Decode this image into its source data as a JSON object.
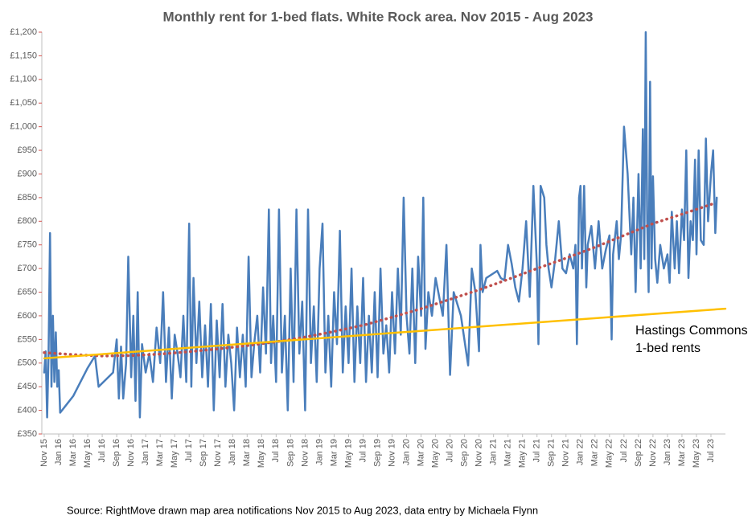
{
  "chart_data": {
    "type": "line",
    "title": "Monthly rent for 1-bed flats. White Rock area. Nov 2015 - Aug 2023",
    "source": "Source: RightMove drawn map area notifications Nov 2015 to Aug 2023, data entry by Michaela Flynn",
    "annotation": [
      "Hastings Commons",
      "1-bed rents"
    ],
    "xlim": [
      0,
      94
    ],
    "ylim": [
      350,
      1200
    ],
    "xticks": [
      {
        "value": 0,
        "label": "Nov 15"
      },
      {
        "value": 2,
        "label": "Jan 16"
      },
      {
        "value": 4,
        "label": "Mar 16"
      },
      {
        "value": 6,
        "label": "May 16"
      },
      {
        "value": 8,
        "label": "Jul 16"
      },
      {
        "value": 10,
        "label": "Sep 16"
      },
      {
        "value": 12,
        "label": "Nov 16"
      },
      {
        "value": 14,
        "label": "Jan 17"
      },
      {
        "value": 16,
        "label": "Mar 17"
      },
      {
        "value": 18,
        "label": "May 17"
      },
      {
        "value": 20,
        "label": "Jul 17"
      },
      {
        "value": 22,
        "label": "Sep 17"
      },
      {
        "value": 24,
        "label": "Nov 17"
      },
      {
        "value": 26,
        "label": "Jan 18"
      },
      {
        "value": 28,
        "label": "Mar 18"
      },
      {
        "value": 30,
        "label": "May 18"
      },
      {
        "value": 32,
        "label": "Jul 18"
      },
      {
        "value": 34,
        "label": "Sep 18"
      },
      {
        "value": 36,
        "label": "Nov 18"
      },
      {
        "value": 38,
        "label": "Jan 19"
      },
      {
        "value": 40,
        "label": "Mar 19"
      },
      {
        "value": 42,
        "label": "May 19"
      },
      {
        "value": 44,
        "label": "Jul 19"
      },
      {
        "value": 46,
        "label": "Sep 19"
      },
      {
        "value": 48,
        "label": "Nov 19"
      },
      {
        "value": 50,
        "label": "Jan 20"
      },
      {
        "value": 52,
        "label": "Mar 20"
      },
      {
        "value": 54,
        "label": "May 20"
      },
      {
        "value": 56,
        "label": "Jul 20"
      },
      {
        "value": 58,
        "label": "Sep 20"
      },
      {
        "value": 60,
        "label": "Nov 20"
      },
      {
        "value": 62,
        "label": "Jan 21"
      },
      {
        "value": 64,
        "label": "Mar 21"
      },
      {
        "value": 66,
        "label": "May 21"
      },
      {
        "value": 68,
        "label": "Jul 21"
      },
      {
        "value": 70,
        "label": "Sep 21"
      },
      {
        "value": 72,
        "label": "Nov 21"
      },
      {
        "value": 74,
        "label": "Jan 22"
      },
      {
        "value": 76,
        "label": "Mar 22"
      },
      {
        "value": 78,
        "label": "May 22"
      },
      {
        "value": 80,
        "label": "Jul 22"
      },
      {
        "value": 82,
        "label": "Sep 22"
      },
      {
        "value": 84,
        "label": "Nov 22"
      },
      {
        "value": 86,
        "label": "Jan 23"
      },
      {
        "value": 88,
        "label": "Mar 23"
      },
      {
        "value": 90,
        "label": "May 23"
      },
      {
        "value": 92,
        "label": "Jul 23"
      }
    ],
    "yticks": [
      {
        "value": 350,
        "label": "£350"
      },
      {
        "value": 400,
        "label": "£400"
      },
      {
        "value": 450,
        "label": "£450"
      },
      {
        "value": 500,
        "label": "£500"
      },
      {
        "value": 550,
        "label": "£550"
      },
      {
        "value": 600,
        "label": "£600"
      },
      {
        "value": 650,
        "label": "£650"
      },
      {
        "value": 700,
        "label": "£700"
      },
      {
        "value": 750,
        "label": "£750"
      },
      {
        "value": 800,
        "label": "£800"
      },
      {
        "value": 850,
        "label": "£850"
      },
      {
        "value": 900,
        "label": "£900"
      },
      {
        "value": 950,
        "label": "£950"
      },
      {
        "value": 1000,
        "label": "£1,000"
      },
      {
        "value": 1050,
        "label": "£1,050"
      },
      {
        "value": 1100,
        "label": "£1,100"
      },
      {
        "value": 1150,
        "label": "£1,150"
      },
      {
        "value": 1200,
        "label": "£1,200"
      }
    ],
    "series": [
      {
        "color": "#4a7ebb",
        "style": "solid",
        "width": 2.5,
        "x": [
          0,
          0.2,
          0.4,
          0.6,
          0.8,
          1.0,
          1.2,
          1.4,
          1.6,
          1.8,
          2.0,
          2.2,
          4,
          6,
          7,
          7.5,
          9.5,
          10,
          10.3,
          10.6,
          10.9,
          11.3,
          11.6,
          12,
          12.3,
          12.6,
          12.9,
          13.2,
          13.5,
          14,
          14.5,
          15,
          15.5,
          16,
          16.4,
          16.8,
          17.2,
          17.6,
          18,
          18.4,
          18.8,
          19.2,
          19.6,
          20,
          20.3,
          20.6,
          21,
          21.4,
          21.8,
          22.2,
          22.6,
          23,
          23.4,
          23.8,
          24.2,
          24.6,
          25,
          25.4,
          25.8,
          26.2,
          26.6,
          27,
          27.4,
          27.8,
          28.2,
          28.6,
          29,
          29.4,
          29.8,
          30.2,
          30.6,
          31,
          31.3,
          31.6,
          32,
          32.4,
          32.8,
          33.2,
          33.6,
          34,
          34.4,
          34.8,
          35.2,
          35.6,
          36,
          36.4,
          36.8,
          37.2,
          37.6,
          38,
          38.4,
          38.8,
          39.2,
          39.6,
          40,
          40.4,
          40.8,
          41.2,
          41.6,
          42,
          42.4,
          42.8,
          43.2,
          43.6,
          44,
          44.4,
          44.8,
          45.2,
          45.6,
          46,
          46.4,
          46.8,
          47.2,
          47.6,
          48,
          48.4,
          48.8,
          49.2,
          49.6,
          50,
          50.4,
          50.8,
          51.2,
          51.6,
          52,
          52.3,
          52.6,
          53,
          53.5,
          54,
          55,
          55.5,
          56,
          56.5,
          57.5,
          58.5,
          59,
          59.5,
          60,
          60.2,
          60.5,
          61,
          62,
          62.5,
          63,
          63.5,
          64,
          64.5,
          65,
          65.5,
          66,
          66.5,
          67,
          67.5,
          68,
          68.2,
          68.5,
          69,
          69.3,
          69.6,
          70,
          70.5,
          71,
          71.5,
          72,
          72.5,
          73,
          73.3,
          73.5,
          73.8,
          74,
          74.2,
          74.5,
          74.8,
          75,
          75.5,
          76,
          76.5,
          77,
          77.5,
          78,
          78.3,
          78.5,
          79,
          79.3,
          79.6,
          80,
          80.5,
          81,
          81.3,
          81.6,
          82,
          82.3,
          82.6,
          82.8,
          83,
          83.2,
          83.4,
          83.6,
          83.8,
          84,
          84.3,
          84.6,
          85,
          85.5,
          86,
          86.3,
          86.6,
          87,
          87.3,
          87.6,
          88,
          88.3,
          88.6,
          88.9,
          89.2,
          89.5,
          89.8,
          90,
          90.3,
          90.6,
          91,
          91.3,
          91.6,
          92,
          92.3,
          92.6,
          92.8
        ],
        "values": [
          480,
          525,
          385,
          520,
          775,
          450,
          600,
          460,
          565,
          450,
          485,
          395,
          430,
          490,
          515,
          450,
          480,
          550,
          425,
          535,
          425,
          500,
          725,
          470,
          600,
          420,
          650,
          385,
          540,
          480,
          520,
          460,
          575,
          500,
          650,
          460,
          575,
          425,
          560,
          520,
          470,
          600,
          460,
          795,
          450,
          680,
          500,
          630,
          470,
          580,
          450,
          625,
          400,
          590,
          470,
          625,
          450,
          560,
          500,
          400,
          575,
          470,
          560,
          450,
          725,
          470,
          545,
          600,
          480,
          660,
          520,
          825,
          500,
          600,
          460,
          825,
          480,
          600,
          400,
          700,
          460,
          825,
          520,
          630,
          400,
          825,
          500,
          620,
          460,
          700,
          795,
          480,
          600,
          450,
          650,
          540,
          780,
          480,
          620,
          500,
          700,
          460,
          620,
          500,
          680,
          460,
          600,
          480,
          650,
          470,
          700,
          520,
          580,
          480,
          650,
          520,
          700,
          560,
          850,
          600,
          520,
          700,
          500,
          725,
          600,
          850,
          530,
          650,
          600,
          680,
          600,
          750,
          475,
          650,
          600,
          495,
          700,
          650,
          525,
          750,
          650,
          680,
          690,
          695,
          680,
          675,
          750,
          710,
          660,
          630,
          700,
          800,
          640,
          875,
          700,
          540,
          875,
          850,
          750,
          700,
          660,
          720,
          800,
          700,
          690,
          730,
          700,
          750,
          540,
          850,
          875,
          700,
          875,
          660,
          750,
          790,
          700,
          800,
          700,
          740,
          770,
          550,
          730,
          800,
          720,
          770,
          1000,
          900,
          730,
          850,
          650,
          900,
          700,
          995,
          720,
          1200,
          800,
          650,
          1095,
          700,
          895,
          720,
          670,
          750,
          700,
          730,
          670,
          820,
          700,
          800,
          690,
          825,
          760,
          950,
          680,
          800,
          760,
          930,
          730,
          950,
          760,
          750,
          975,
          800,
          900,
          950,
          775,
          850
        ]
      },
      {
        "color": "#c0504d",
        "style": "dotted",
        "width": 3.5,
        "x": [
          0,
          4,
          8,
          12,
          16,
          20,
          24,
          28,
          32,
          36,
          40,
          44,
          48,
          52,
          56,
          60,
          64,
          68,
          72,
          76,
          80,
          84,
          88,
          92.5
        ],
        "values": [
          522,
          518,
          515,
          516,
          519,
          524,
          530,
          537,
          545,
          555,
          567,
          580,
          597,
          615,
          635,
          655,
          677,
          700,
          722,
          745,
          770,
          795,
          815,
          838
        ]
      },
      {
        "color": "#ffc000",
        "style": "solid",
        "width": 2.5,
        "x": [
          0,
          94
        ],
        "values": [
          510,
          615
        ]
      }
    ]
  }
}
